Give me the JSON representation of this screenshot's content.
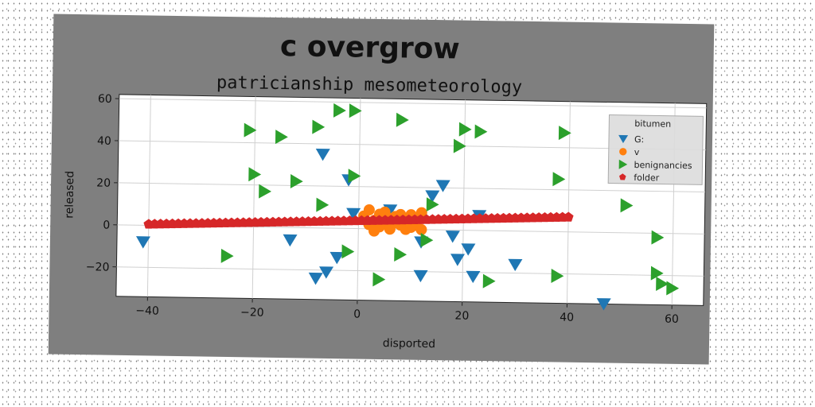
{
  "chart_data": {
    "type": "scatter",
    "title": "c overgrow",
    "subtitle": "patricianship mesometeorology",
    "xlabel": "disported",
    "ylabel": "released",
    "xlim": [
      -46,
      66
    ],
    "ylim": [
      -34,
      62
    ],
    "xticks": [
      -40,
      -20,
      0,
      20,
      40,
      60
    ],
    "yticks": [
      -20,
      0,
      20,
      40,
      60
    ],
    "xtick_labels": [
      "−40",
      "−20",
      "0",
      "20",
      "40",
      "60"
    ],
    "ytick_labels": [
      "−20",
      "0",
      "20",
      "40",
      "60"
    ],
    "grid": true,
    "legend_title": "bitumen",
    "legend_position": "top-right",
    "series": [
      {
        "name": "G:",
        "marker": "triangle-down",
        "color": "#1f77b4",
        "points": [
          [
            -41,
            -8
          ],
          [
            -13,
            -6
          ],
          [
            -7,
            35
          ],
          [
            -8,
            -24
          ],
          [
            -6,
            -21
          ],
          [
            -4,
            -14
          ],
          [
            -2,
            23
          ],
          [
            -1,
            7
          ],
          [
            6,
            9
          ],
          [
            12,
            -6
          ],
          [
            12,
            -22
          ],
          [
            14,
            16
          ],
          [
            16,
            21
          ],
          [
            18,
            -3
          ],
          [
            19,
            -14
          ],
          [
            21,
            -9
          ],
          [
            22,
            -22
          ],
          [
            23,
            7
          ],
          [
            30,
            -16
          ],
          [
            47,
            -34
          ]
        ]
      },
      {
        "name": "v",
        "marker": "circle",
        "color": "#ff7f0e",
        "points": [
          [
            1,
            6
          ],
          [
            2,
            9
          ],
          [
            2,
            2
          ],
          [
            3,
            4
          ],
          [
            4,
            1
          ],
          [
            4,
            7
          ],
          [
            5,
            3
          ],
          [
            5,
            8
          ],
          [
            6,
            5
          ],
          [
            6,
            0
          ],
          [
            7,
            6
          ],
          [
            7,
            3
          ],
          [
            8,
            7
          ],
          [
            8,
            2
          ],
          [
            9,
            5
          ],
          [
            9,
            0
          ],
          [
            10,
            7
          ],
          [
            10,
            3
          ],
          [
            11,
            5
          ],
          [
            11,
            2
          ],
          [
            12,
            8
          ],
          [
            12,
            0
          ],
          [
            3,
            -1
          ],
          [
            10,
            1
          ]
        ]
      },
      {
        "name": "benignancies",
        "marker": "triangle-right",
        "color": "#2ca02c",
        "points": [
          [
            -25,
            -14
          ],
          [
            -21,
            46
          ],
          [
            -20,
            25
          ],
          [
            -18,
            17
          ],
          [
            -15,
            43
          ],
          [
            -12,
            22
          ],
          [
            -8,
            48
          ],
          [
            -7,
            11
          ],
          [
            -4,
            56
          ],
          [
            -1,
            56
          ],
          [
            -2,
            -11
          ],
          [
            -1,
            25
          ],
          [
            4,
            -24
          ],
          [
            8,
            -12
          ],
          [
            8,
            52
          ],
          [
            13,
            -5
          ],
          [
            14,
            12
          ],
          [
            19,
            40
          ],
          [
            20,
            48
          ],
          [
            23,
            47
          ],
          [
            25,
            -24
          ],
          [
            38,
            25
          ],
          [
            38,
            -21
          ],
          [
            39,
            47
          ],
          [
            51,
            13
          ],
          [
            57,
            -2
          ],
          [
            57,
            -19
          ],
          [
            58,
            -24
          ],
          [
            60,
            -26
          ]
        ]
      },
      {
        "name": "folder",
        "marker": "pentagon",
        "color": "#d62728",
        "x_from": -40,
        "x_to": 40,
        "count": 72,
        "y_from": 0.5,
        "y_to": 7
      }
    ]
  }
}
